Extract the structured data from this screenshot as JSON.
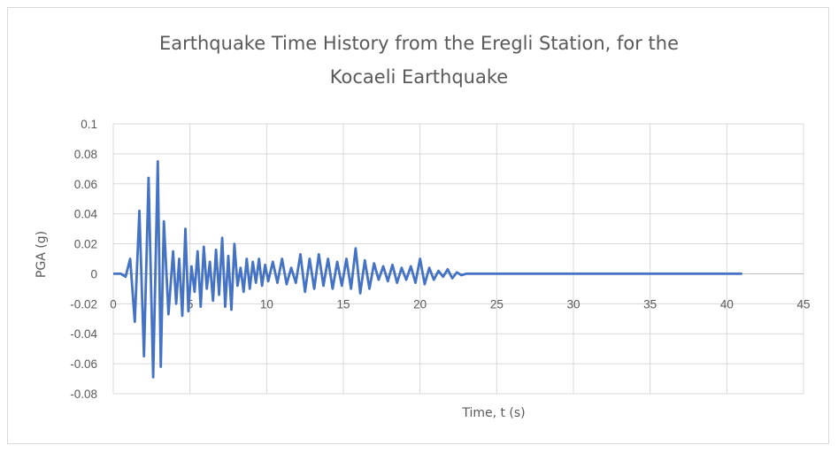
{
  "chart_data": {
    "type": "line",
    "title": "Earthquake Time History from the Eregli Station, for the Kocaeli Earthquake",
    "xlabel": "Time, t (s)",
    "ylabel": "PGA (g)",
    "xlim": [
      0,
      45
    ],
    "ylim": [
      -0.08,
      0.1
    ],
    "x_ticks": [
      0,
      5,
      10,
      15,
      20,
      25,
      30,
      35,
      40,
      45
    ],
    "y_ticks": [
      -0.08,
      -0.06,
      -0.04,
      -0.02,
      0,
      0.02,
      0.04,
      0.06,
      0.08,
      0.1
    ],
    "y_tick_labels": [
      "-0.08",
      "-0.06",
      "-0.04",
      "-0.02",
      "0",
      "0.02",
      "0.04",
      "0.06",
      "0.08",
      "0.1"
    ],
    "grid": true,
    "legend": "none",
    "line_color": "#4472c4",
    "series": [
      {
        "x": [
          0,
          0.5,
          0.8,
          1.1,
          1.4,
          1.7,
          2.0,
          2.3,
          2.6,
          2.9,
          3.1,
          3.3,
          3.6,
          3.9,
          4.1,
          4.3,
          4.5,
          4.7,
          4.9,
          5.1,
          5.3,
          5.5,
          5.7,
          5.9,
          6.1,
          6.3,
          6.5,
          6.7,
          6.9,
          7.1,
          7.3,
          7.5,
          7.7,
          7.9,
          8.1,
          8.3,
          8.5,
          8.7,
          8.9,
          9.1,
          9.3,
          9.5,
          9.7,
          9.9,
          10.1,
          10.4,
          10.7,
          11.0,
          11.3,
          11.6,
          11.9,
          12.2,
          12.5,
          12.8,
          13.1,
          13.4,
          13.7,
          14.0,
          14.3,
          14.6,
          14.9,
          15.2,
          15.5,
          15.8,
          16.1,
          16.4,
          16.7,
          17.0,
          17.3,
          17.6,
          17.9,
          18.2,
          18.5,
          18.8,
          19.1,
          19.4,
          19.7,
          20.0,
          20.3,
          20.6,
          20.9,
          21.2,
          21.5,
          21.8,
          22.1,
          22.4,
          22.7,
          23.0,
          23.3,
          23.6,
          23.9,
          24.2,
          24.5,
          24.8,
          25.1,
          25.4,
          25.7,
          26.0,
          26.4,
          26.8,
          27.2,
          27.6,
          28.0,
          28.5,
          29.0,
          30,
          31,
          32,
          33,
          34,
          35,
          36,
          37,
          38,
          39,
          40,
          41
        ],
        "values": [
          0,
          0,
          -0.002,
          0.01,
          -0.032,
          0.042,
          -0.055,
          0.064,
          -0.069,
          0.075,
          -0.062,
          0.035,
          -0.027,
          0.015,
          -0.02,
          0.01,
          -0.028,
          0.03,
          -0.025,
          0.005,
          -0.012,
          0.015,
          -0.022,
          0.018,
          -0.01,
          0.008,
          -0.018,
          0.016,
          -0.014,
          0.024,
          -0.022,
          0.012,
          -0.024,
          0.02,
          -0.008,
          0.004,
          -0.012,
          0.01,
          -0.01,
          0.008,
          -0.006,
          0.01,
          -0.008,
          0.006,
          -0.005,
          0.008,
          -0.006,
          0.01,
          -0.007,
          0.004,
          -0.006,
          0.013,
          -0.012,
          0.01,
          -0.01,
          0.013,
          -0.008,
          0.01,
          -0.01,
          0.008,
          -0.008,
          0.01,
          -0.01,
          0.017,
          -0.013,
          0.009,
          -0.01,
          0.007,
          -0.004,
          0.005,
          -0.005,
          0.006,
          -0.006,
          0.004,
          -0.004,
          0.005,
          -0.006,
          0.01,
          -0.007,
          0.004,
          -0.004,
          0.002,
          -0.002,
          0.003,
          -0.003,
          0.001,
          -0.001,
          0,
          0,
          0,
          0,
          0,
          0,
          0,
          0,
          0,
          0,
          0,
          0,
          0,
          0,
          0,
          0,
          0,
          0,
          0,
          0,
          0,
          0,
          0,
          0,
          0,
          0,
          0,
          0,
          0,
          0
        ]
      }
    ]
  }
}
